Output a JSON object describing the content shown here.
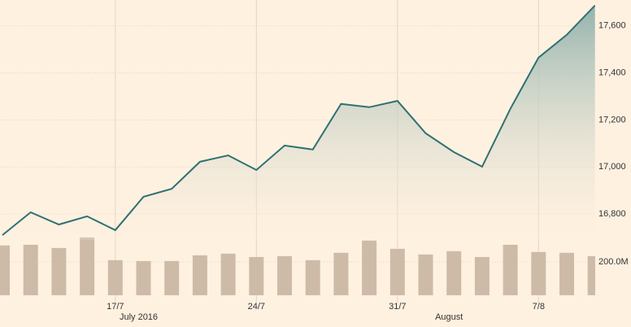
{
  "chart_data": {
    "type": "line",
    "categories": [
      null,
      null,
      null,
      null,
      "17/7",
      null,
      null,
      null,
      null,
      "24/7",
      null,
      null,
      null,
      null,
      "31/7",
      null,
      null,
      null,
      null,
      "7/8",
      null,
      null
    ],
    "month_labels": [
      null,
      null,
      null,
      null,
      null,
      "July 2016",
      null,
      null,
      null,
      null,
      null,
      null,
      null,
      null,
      null,
      null,
      "August",
      null,
      null,
      null,
      null,
      null
    ],
    "series": [
      {
        "color": "#2e7173",
        "values": [
          16710,
          16807,
          16755,
          16790,
          16731,
          16873,
          16907,
          17022,
          17049,
          16987,
          17091,
          17074,
          17268,
          17254,
          17281,
          17143,
          17063,
          17001,
          17247,
          17465,
          17562,
          17687
        ]
      },
      {
        "color": "#cdbba8",
        "axis": "y2",
        "values": [
          298,
          302,
          283,
          346,
          210,
          205,
          205,
          239,
          249,
          229,
          234,
          210,
          254,
          327,
          278,
          244,
          264,
          229,
          302,
          259,
          254,
          234
        ]
      }
    ],
    "ylim": [
      16690,
      17710
    ],
    "yticks": [
      {
        "value": 16800,
        "label": "16,800"
      },
      {
        "value": 17000,
        "label": "17,000"
      },
      {
        "value": 17200,
        "label": "17,200"
      },
      {
        "value": 17400,
        "label": "17,400"
      },
      {
        "value": 17600,
        "label": "17,600"
      }
    ],
    "y2lim": [
      0,
      360
    ],
    "y2ticks": [
      {
        "value": 200,
        "label": "200.0M"
      }
    ],
    "grid": true
  }
}
